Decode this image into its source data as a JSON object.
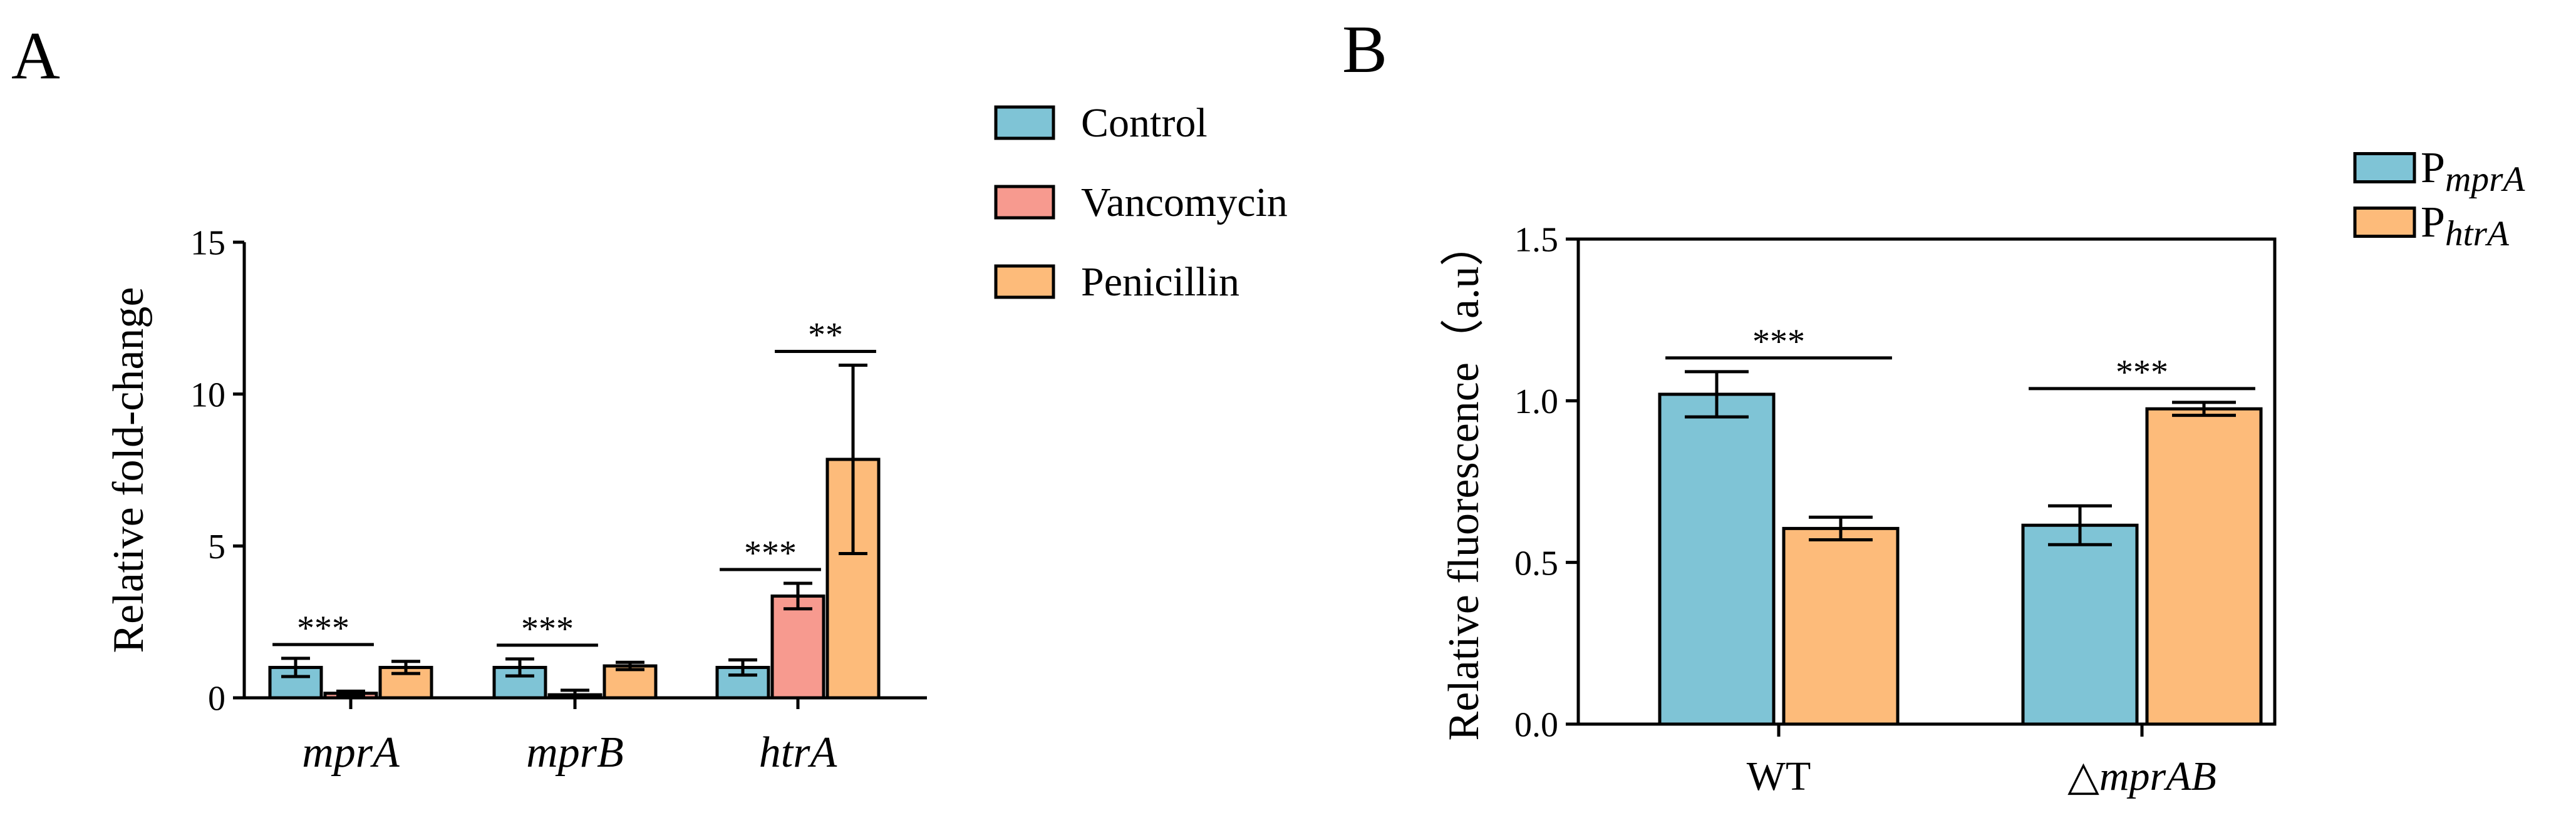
{
  "panels": {
    "a": {
      "label": "A"
    },
    "b": {
      "label": "B"
    }
  },
  "colors": {
    "control": "#7fc4d6",
    "vancomycin": "#f79a8f",
    "penicillin": "#fdbb7a"
  },
  "chart_data": [
    {
      "panel": "A",
      "type": "bar",
      "ylabel": "Relative fold-change",
      "xlabel": "",
      "ylim": [
        0,
        15
      ],
      "yticks": [
        "0",
        "5",
        "10",
        "15"
      ],
      "categories": [
        "mprA",
        "mprB",
        "htrA"
      ],
      "category_style": "italic",
      "legend": {
        "placement": "top-right, outside plot"
      },
      "series": [
        {
          "name": "Control",
          "color": "#7fc4d6",
          "values": [
            1.0,
            1.0,
            1.0
          ],
          "errors": [
            0.3,
            0.28,
            0.25
          ]
        },
        {
          "name": "Vancomycin",
          "color": "#f79a8f",
          "values": [
            0.15,
            0.1,
            3.35
          ],
          "errors": [
            0.07,
            0.15,
            0.42
          ]
        },
        {
          "name": "Penicillin",
          "color": "#fdbb7a",
          "values": [
            1.0,
            1.05,
            7.85
          ],
          "errors": [
            0.2,
            0.12,
            3.1
          ]
        }
      ],
      "significance": [
        {
          "category": 0,
          "from": 0,
          "to": 1,
          "label": "***"
        },
        {
          "category": 1,
          "from": 0,
          "to": 1,
          "label": "***"
        },
        {
          "category": 2,
          "from": 0,
          "to": 1,
          "label": "***"
        },
        {
          "category": 2,
          "from": 1,
          "to": 2,
          "label": "**"
        }
      ]
    },
    {
      "panel": "B",
      "type": "bar",
      "ylabel": "Relative fluorescence（a.u）",
      "xlabel": "",
      "ylim": [
        0,
        1.5
      ],
      "yticks": [
        "0.0",
        "0.5",
        "1.0",
        "1.5"
      ],
      "categories": [
        {
          "prefix": "",
          "italic": "",
          "text": "WT"
        },
        {
          "prefix": "△",
          "italic": "mprAB",
          "text": "△mprAB"
        }
      ],
      "legend": {
        "placement": "top-right, outside plot"
      },
      "series": [
        {
          "name": "PmprA",
          "name_plain": "P",
          "name_italic": "mprA",
          "color": "#7fc4d6",
          "values": [
            1.02,
            0.615
          ],
          "errors": [
            0.07,
            0.06
          ]
        },
        {
          "name": "PhtrA",
          "name_plain": "P",
          "name_italic": "htrA",
          "color": "#fdbb7a",
          "values": [
            0.605,
            0.975
          ],
          "errors": [
            0.035,
            0.02
          ]
        }
      ],
      "significance": [
        {
          "category": 0,
          "from": 0,
          "to": 1,
          "label": "***"
        },
        {
          "category": 1,
          "from": 0,
          "to": 1,
          "label": "***"
        }
      ]
    }
  ]
}
